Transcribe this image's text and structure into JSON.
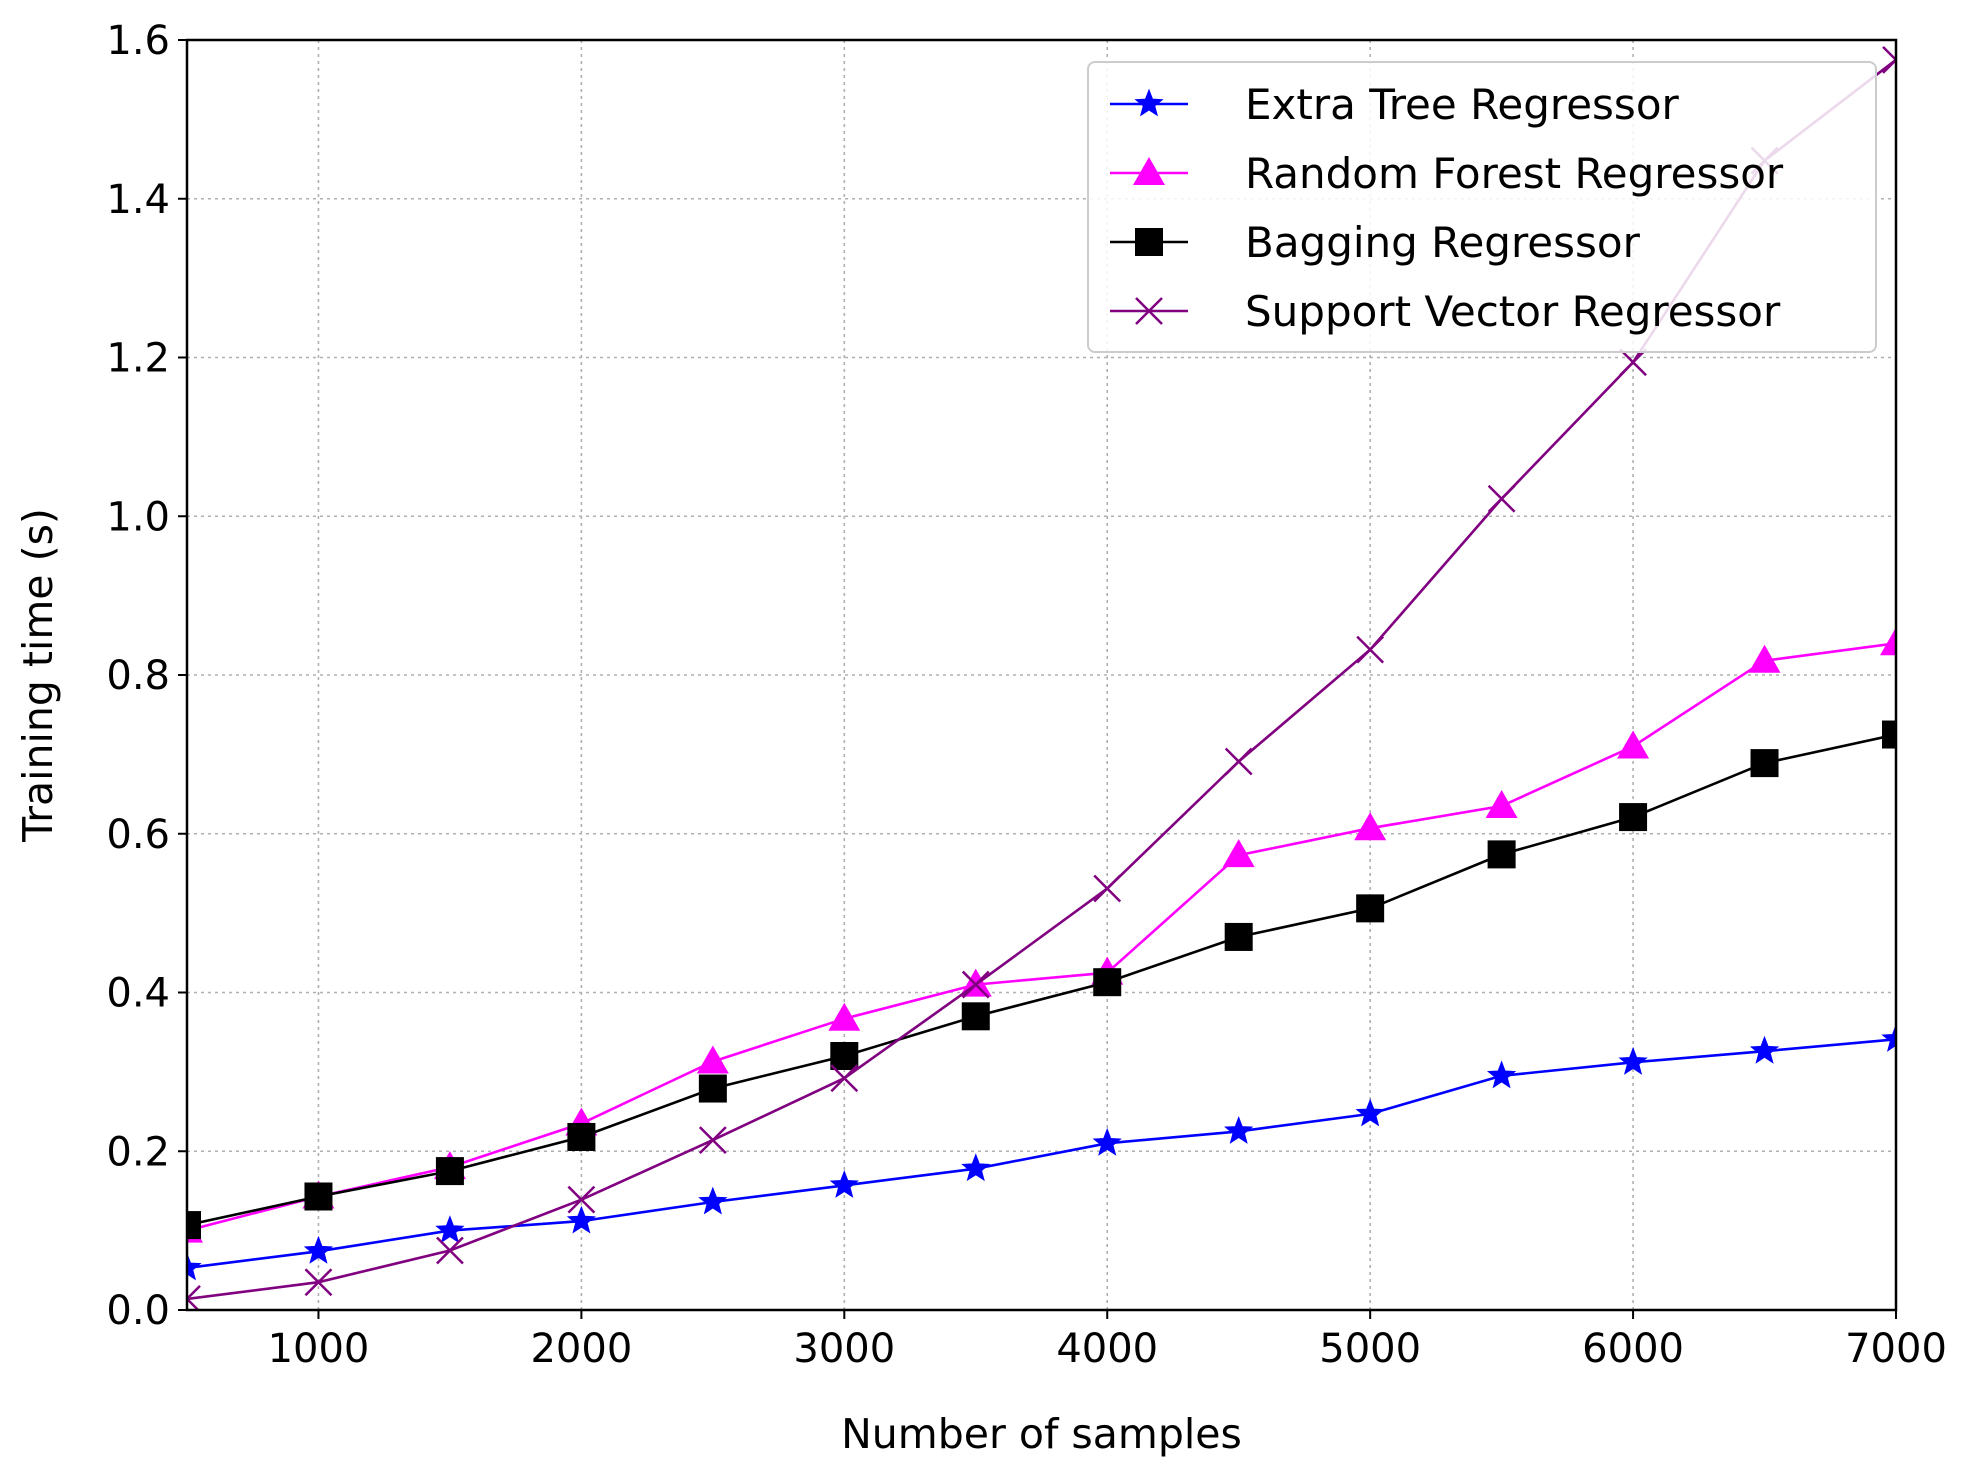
{
  "chart_data": {
    "type": "line",
    "title": "",
    "xlabel": "Number of samples",
    "ylabel": "Training time (s)",
    "xlim": [
      500,
      7000
    ],
    "ylim": [
      0.0,
      1.6
    ],
    "grid": true,
    "legend_position": "top-right",
    "x": [
      500,
      1000,
      1500,
      2000,
      2500,
      3000,
      3500,
      4000,
      4500,
      5000,
      5500,
      6000,
      6500,
      7000
    ],
    "xticks": [
      1000,
      2000,
      3000,
      4000,
      5000,
      6000,
      7000
    ],
    "xtick_labels": [
      "1000",
      "2000",
      "3000",
      "4000",
      "5000",
      "6000",
      "7000"
    ],
    "yticks": [
      0.0,
      0.2,
      0.4,
      0.6,
      0.8,
      1.0,
      1.2,
      1.4,
      1.6
    ],
    "ytick_labels": [
      "0.0",
      "0.2",
      "0.4",
      "0.6",
      "0.8",
      "1.0",
      "1.2",
      "1.4",
      "1.6"
    ],
    "series": [
      {
        "name": "Extra Tree Regressor",
        "color": "#0000ff",
        "marker": "star",
        "values": [
          0.053,
          0.074,
          0.1,
          0.112,
          0.136,
          0.157,
          0.178,
          0.21,
          0.225,
          0.247,
          0.295,
          0.312,
          0.326,
          0.341
        ]
      },
      {
        "name": "Random Forest Regressor",
        "color": "#ff00ff",
        "marker": "triangle",
        "values": [
          0.1,
          0.143,
          0.18,
          0.235,
          0.313,
          0.367,
          0.41,
          0.425,
          0.573,
          0.607,
          0.635,
          0.71,
          0.818,
          0.84
        ]
      },
      {
        "name": "Bagging Regressor",
        "color": "#000000",
        "marker": "square",
        "values": [
          0.107,
          0.143,
          0.175,
          0.218,
          0.279,
          0.32,
          0.37,
          0.413,
          0.47,
          0.506,
          0.574,
          0.621,
          0.689,
          0.725
        ]
      },
      {
        "name": "Support Vector Regressor",
        "color": "#800080",
        "marker": "x",
        "values": [
          0.014,
          0.035,
          0.075,
          0.139,
          0.214,
          0.292,
          0.41,
          0.531,
          0.691,
          0.832,
          1.022,
          1.194,
          1.448,
          1.575
        ]
      }
    ]
  }
}
